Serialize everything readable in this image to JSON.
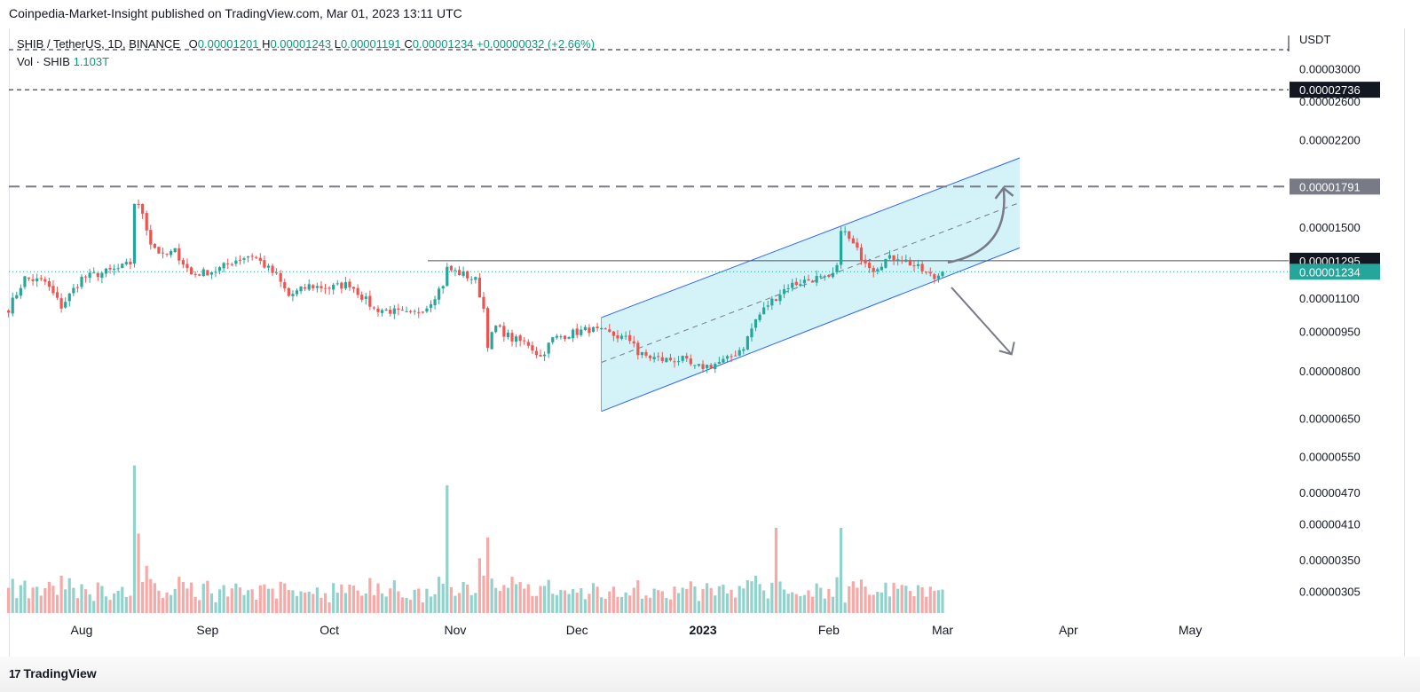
{
  "header": {
    "published": "Coinpedia-Market-Insight published on TradingView.com, Mar 01, 2023 13:11 UTC"
  },
  "legend": {
    "symbol": "SHIB / TetherUS, 1D, BINANCE",
    "o_label": "O",
    "o_value": "0.00001201",
    "h_label": "H",
    "h_value": "0.00001243",
    "l_label": "L",
    "l_value": "0.00001191",
    "c_label": "C",
    "c_value": "0.00001234",
    "change": "+0.00000032 (+2.66%)",
    "vol_label": "Vol · SHIB",
    "vol_value": "1.103T"
  },
  "footer": {
    "logo_mark": "17",
    "brand": "TradingView"
  },
  "colors": {
    "up": "#26a69a",
    "down": "#ef5350",
    "up_vol": "#92d2cc",
    "down_vol": "#f7a9a7",
    "channel_fill": "#c6eff7",
    "channel_line": "#2962ff",
    "level_dark": "#131722",
    "level_gray": "#787b86",
    "last_price": "#26a69a",
    "arrow": "#787b86"
  },
  "chart_data": {
    "type": "candlestick",
    "currency": "USDT",
    "y_scale": "log",
    "yticks": [
      3e-05,
      2.6e-05,
      2.2e-05,
      1.5e-05,
      1.1e-05,
      9.5e-06,
      8e-06,
      6.5e-06,
      5.5e-06,
      4.7e-06,
      4.1e-06,
      3.5e-06,
      3.05e-06
    ],
    "ytick_labels": [
      "0.00003000",
      "0.00002600",
      "0.00002200",
      "0.00001500",
      "0.00001100",
      "0.00000950",
      "0.00000800",
      "0.00000650",
      "0.00000550",
      "0.00000470",
      "0.00000410",
      "0.00000350",
      "0.00000305"
    ],
    "x_labels": [
      {
        "label": "Aug",
        "date": "2022-08-01"
      },
      {
        "label": "Sep",
        "date": "2022-09-01"
      },
      {
        "label": "Oct",
        "date": "2022-10-01"
      },
      {
        "label": "Nov",
        "date": "2022-11-01"
      },
      {
        "label": "Dec",
        "date": "2022-12-01"
      },
      {
        "label": "2023",
        "date": "2023-01-01",
        "bold": true
      },
      {
        "label": "Feb",
        "date": "2023-02-01"
      },
      {
        "label": "Mar",
        "date": "2023-03-01"
      },
      {
        "label": "Apr",
        "date": "2023-04-01"
      },
      {
        "label": "May",
        "date": "2023-05-01"
      }
    ],
    "close_path": [
      [
        "2022-07-14",
        1.05e-05
      ],
      [
        "2022-07-18",
        1.2e-05
      ],
      [
        "2022-07-23",
        1.18e-05
      ],
      [
        "2022-07-27",
        1.06e-05
      ],
      [
        "2022-08-01",
        1.2e-05
      ],
      [
        "2022-08-10",
        1.25e-05
      ],
      [
        "2022-08-13",
        1.28e-05
      ],
      [
        "2022-08-14",
        1.67e-05
      ],
      [
        "2022-08-16",
        1.6e-05
      ],
      [
        "2022-08-18",
        1.4e-05
      ],
      [
        "2022-08-21",
        1.32e-05
      ],
      [
        "2022-08-24",
        1.35e-05
      ],
      [
        "2022-08-28",
        1.22e-05
      ],
      [
        "2022-09-03",
        1.24e-05
      ],
      [
        "2022-09-08",
        1.3e-05
      ],
      [
        "2022-09-12",
        1.33e-05
      ],
      [
        "2022-09-18",
        1.21e-05
      ],
      [
        "2022-09-21",
        1.11e-05
      ],
      [
        "2022-09-26",
        1.16e-05
      ],
      [
        "2022-10-01",
        1.15e-05
      ],
      [
        "2022-10-06",
        1.17e-05
      ],
      [
        "2022-10-12",
        1.05e-05
      ],
      [
        "2022-10-16",
        1.04e-05
      ],
      [
        "2022-10-21",
        1.02e-05
      ],
      [
        "2022-10-25",
        1.06e-05
      ],
      [
        "2022-10-29",
        1.17e-05
      ],
      [
        "2022-10-30",
        1.25e-05
      ],
      [
        "2022-11-03",
        1.22e-05
      ],
      [
        "2022-11-06",
        1.19e-05
      ],
      [
        "2022-11-08",
        1.05e-05
      ],
      [
        "2022-11-09",
        9e-06
      ],
      [
        "2022-11-11",
        9.7e-06
      ],
      [
        "2022-11-15",
        9.2e-06
      ],
      [
        "2022-11-19",
        9e-06
      ],
      [
        "2022-11-22",
        8.5e-06
      ],
      [
        "2022-11-25",
        9.2e-06
      ],
      [
        "2022-11-29",
        9.4e-06
      ],
      [
        "2022-12-04",
        9.6e-06
      ],
      [
        "2022-12-09",
        9.4e-06
      ],
      [
        "2022-12-15",
        9.1e-06
      ],
      [
        "2022-12-16",
        8.6e-06
      ],
      [
        "2022-12-22",
        8.4e-06
      ],
      [
        "2022-12-27",
        8.4e-06
      ],
      [
        "2022-12-30",
        8.1e-06
      ],
      [
        "2023-01-03",
        8.2e-06
      ],
      [
        "2023-01-07",
        8.4e-06
      ],
      [
        "2023-01-11",
        8.9e-06
      ],
      [
        "2023-01-14",
        1e-05
      ],
      [
        "2023-01-17",
        1.07e-05
      ],
      [
        "2023-01-22",
        1.16e-05
      ],
      [
        "2023-01-25",
        1.18e-05
      ],
      [
        "2023-01-29",
        1.2e-05
      ],
      [
        "2023-02-01",
        1.19e-05
      ],
      [
        "2023-02-03",
        1.25e-05
      ],
      [
        "2023-02-04",
        1.5e-05
      ],
      [
        "2023-02-06",
        1.42e-05
      ],
      [
        "2023-02-09",
        1.32e-05
      ],
      [
        "2023-02-12",
        1.25e-05
      ],
      [
        "2023-02-15",
        1.3e-05
      ],
      [
        "2023-02-18",
        1.32e-05
      ],
      [
        "2023-02-21",
        1.28e-05
      ],
      [
        "2023-02-24",
        1.24e-05
      ],
      [
        "2023-02-27",
        1.2e-05
      ],
      [
        "2023-03-01",
        1.234e-05
      ]
    ],
    "volume_spikes": [
      [
        "2022-08-14",
        5.2
      ],
      [
        "2022-08-15",
        2.8
      ],
      [
        "2022-10-30",
        4.5
      ],
      [
        "2023-01-19",
        3.0
      ],
      [
        "2023-02-04",
        3.0
      ]
    ],
    "horizontal_levels": [
      {
        "price": 2.736e-05,
        "label": "0.00002736",
        "style": "dashed-dark"
      },
      {
        "price": 1.791e-05,
        "label": "0.00001791",
        "style": "dashed-gray"
      },
      {
        "price": 1.295e-05,
        "label": "0.00001295",
        "style": "solid-dark"
      },
      {
        "price": 1.234e-05,
        "label": "0.00001234",
        "style": "last-price"
      }
    ],
    "ascending_channel": {
      "lower_start": [
        "2022-12-07",
        6.7e-06
      ],
      "lower_end": [
        "2023-03-20",
        1.37e-05
      ],
      "upper_start": [
        "2022-12-07",
        1.01e-05
      ],
      "upper_end": [
        "2023-03-20",
        2.03e-05
      ],
      "midline_start": [
        "2022-12-07",
        8.3e-06
      ],
      "midline_end": [
        "2023-03-20",
        1.67e-05
      ]
    },
    "projections": [
      {
        "direction": "up",
        "target": [
          "2023-03-16",
          1.78e-05
        ]
      },
      {
        "direction": "down",
        "target": [
          "2023-03-18",
          8.6e-06
        ]
      }
    ]
  }
}
